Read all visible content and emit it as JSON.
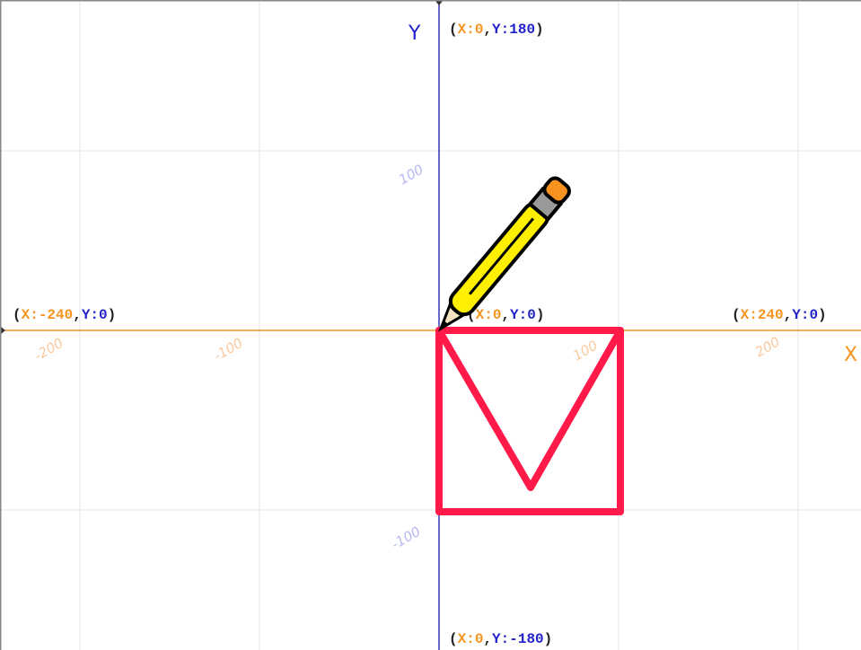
{
  "axes": {
    "y_name": "Y",
    "x_name": "X"
  },
  "coordinate_labels": [
    {
      "segments": [
        "(",
        "X:0",
        ",",
        "Y:180",
        ")"
      ]
    },
    {
      "segments": [
        "(",
        "X:-240",
        ",",
        "Y:0",
        ")"
      ]
    },
    {
      "segments": [
        "(",
        "X:0",
        ",",
        "Y:0",
        ")"
      ]
    },
    {
      "segments": [
        "(",
        "X:240",
        ",",
        "Y:0",
        ")"
      ]
    },
    {
      "segments": [
        "(",
        "X:0",
        ",",
        "Y:-180",
        ")"
      ]
    }
  ],
  "x_tick_labels": [
    "-200",
    "-100",
    "100",
    "200"
  ],
  "y_tick_labels": [
    "100",
    "-100"
  ]
}
